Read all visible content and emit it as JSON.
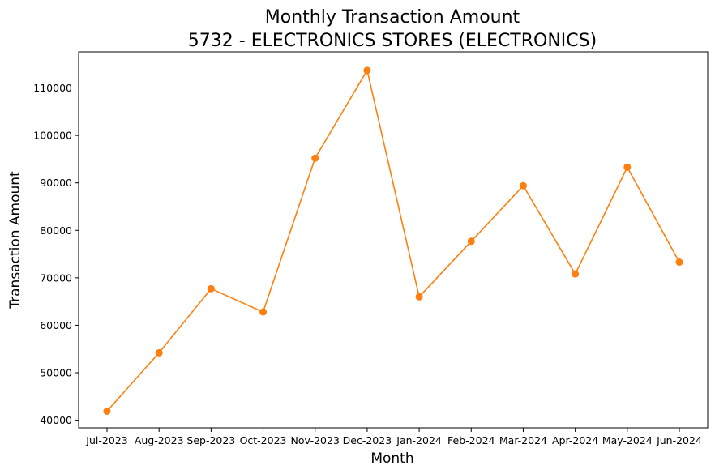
{
  "chart_data": {
    "type": "line",
    "title": "Monthly Transaction Amount",
    "subtitle": "5732 - ELECTRONICS STORES (ELECTRONICS)",
    "xlabel": "Month",
    "ylabel": "Transaction Amount",
    "categories": [
      "Jul-2023",
      "Aug-2023",
      "Sep-2023",
      "Oct-2023",
      "Nov-2023",
      "Dec-2023",
      "Jan-2024",
      "Feb-2024",
      "Mar-2024",
      "Apr-2024",
      "May-2024",
      "Jun-2024"
    ],
    "series": [
      {
        "values": [
          41900,
          54200,
          67700,
          62800,
          95200,
          113700,
          66000,
          77700,
          89400,
          70800,
          93300,
          73300
        ],
        "color": "#ff7f0e",
        "marker": "circle"
      }
    ],
    "ylim": [
      38400,
      117600
    ],
    "yticks": [
      40000,
      50000,
      60000,
      70000,
      80000,
      90000,
      100000,
      110000
    ],
    "grid": false,
    "legend": "none"
  }
}
